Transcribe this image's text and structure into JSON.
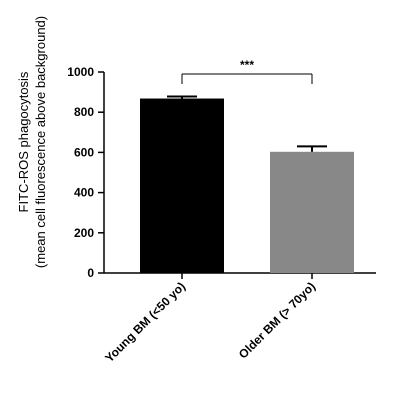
{
  "chart_data": {
    "type": "bar",
    "categories": [
      "Young BM (<50 yo)",
      "Older BM (> 70yo)"
    ],
    "values": [
      868,
      603
    ],
    "error": [
      10,
      27
    ],
    "ylabel_line1": "FITC-ROS phagocytosis",
    "ylabel_line2": "(mean cell fluorescence above background)",
    "ylim": [
      0,
      1000
    ],
    "yticks": [
      "0",
      "200",
      "400",
      "600",
      "800",
      "1000"
    ],
    "ytick_values": [
      0,
      200,
      400,
      600,
      800,
      1000
    ],
    "bar_colors": [
      "#000000",
      "#888888"
    ],
    "significance": "***",
    "grid": false
  }
}
